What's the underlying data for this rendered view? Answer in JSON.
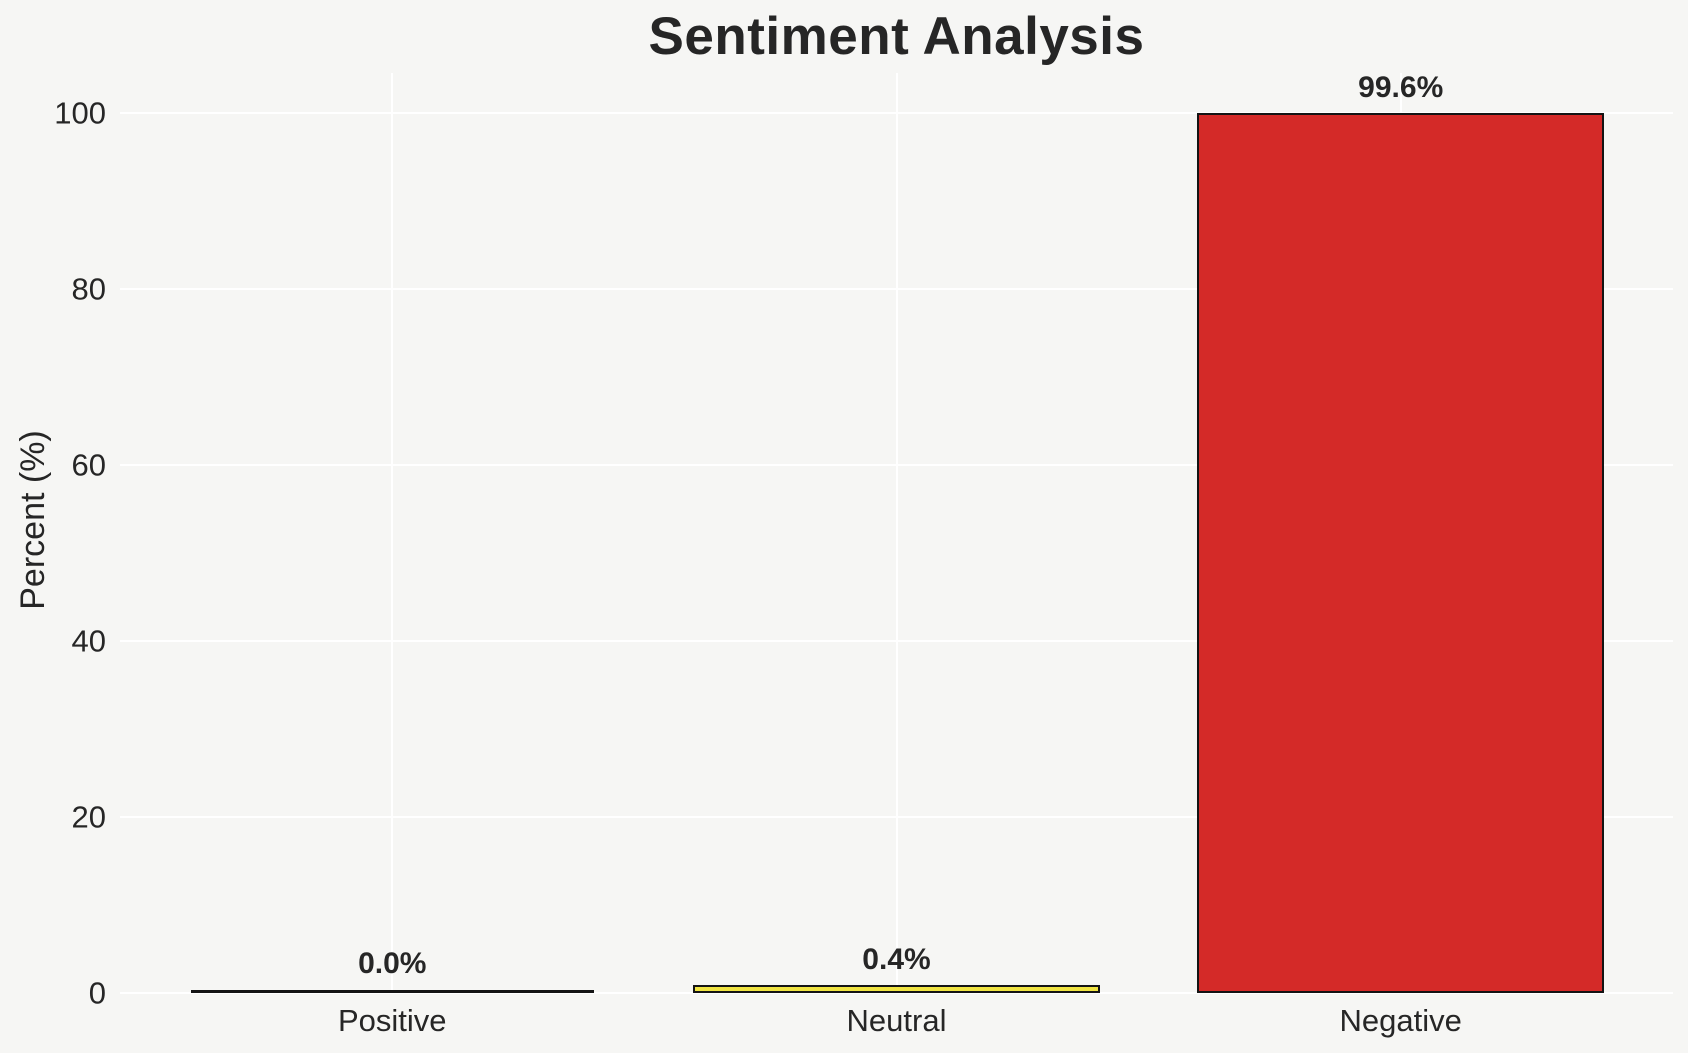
{
  "chart_data": {
    "type": "bar",
    "title": "Sentiment Analysis",
    "categories": [
      "Positive",
      "Neutral",
      "Negative"
    ],
    "values": [
      0.0,
      0.4,
      99.6
    ],
    "value_labels": [
      "0.0%",
      "0.4%",
      "99.6%"
    ],
    "xlabel": "",
    "ylabel": "Percent (%)",
    "yticks": [
      0,
      20,
      40,
      60,
      80,
      100
    ],
    "ylim": [
      0,
      104.6
    ],
    "grid": true,
    "legend_position": "none",
    "bar_width_fraction": 0.8,
    "bar_colors": [
      null,
      "#f0e442",
      "#d42a28"
    ],
    "bar_edge_color": "#141414",
    "background_color": "#f6f6f4",
    "grid_color": "#ffffff",
    "text_color": "#262626"
  }
}
